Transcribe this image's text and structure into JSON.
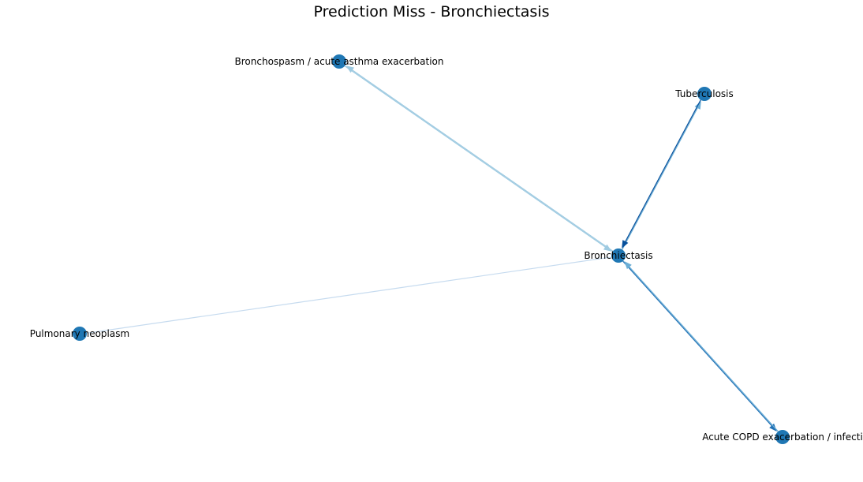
{
  "title": "Prediction Miss - Bronchiectasis",
  "node_color": "#1f77b4",
  "nodes": [
    {
      "id": "bronchiectasis",
      "label": "Bronchiectasis"
    },
    {
      "id": "bronchospasm",
      "label": "Bronchospasm / acute asthma exacerbation"
    },
    {
      "id": "tuberculosis",
      "label": "Tuberculosis"
    },
    {
      "id": "pulmonary-neoplasm",
      "label": "Pulmonary neoplasm"
    },
    {
      "id": "copd",
      "label": "Acute COPD exacerbation / infecti"
    }
  ],
  "edges": [
    {
      "source": "bronchiectasis",
      "target": "bronchospasm",
      "color": "#9ecae1",
      "arrow_at_target": true
    },
    {
      "source": "bronchospasm",
      "target": "bronchiectasis",
      "color": "#9ecae1",
      "arrow_at_target": true
    },
    {
      "source": "bronchiectasis",
      "target": "tuberculosis",
      "color": "#6baed6",
      "arrow_at_target": true
    },
    {
      "source": "tuberculosis",
      "target": "bronchiectasis",
      "color": "#08519c",
      "arrow_at_target": true
    },
    {
      "source": "pulmonary-neoplasm",
      "target": "bronchiectasis",
      "color": "#c6dbef",
      "arrow_at_target": false
    },
    {
      "source": "bronchiectasis",
      "target": "copd",
      "color": "#2171b5",
      "arrow_at_target": true
    },
    {
      "source": "copd",
      "target": "bronchiectasis",
      "color": "#6baed6",
      "arrow_at_target": true
    }
  ]
}
